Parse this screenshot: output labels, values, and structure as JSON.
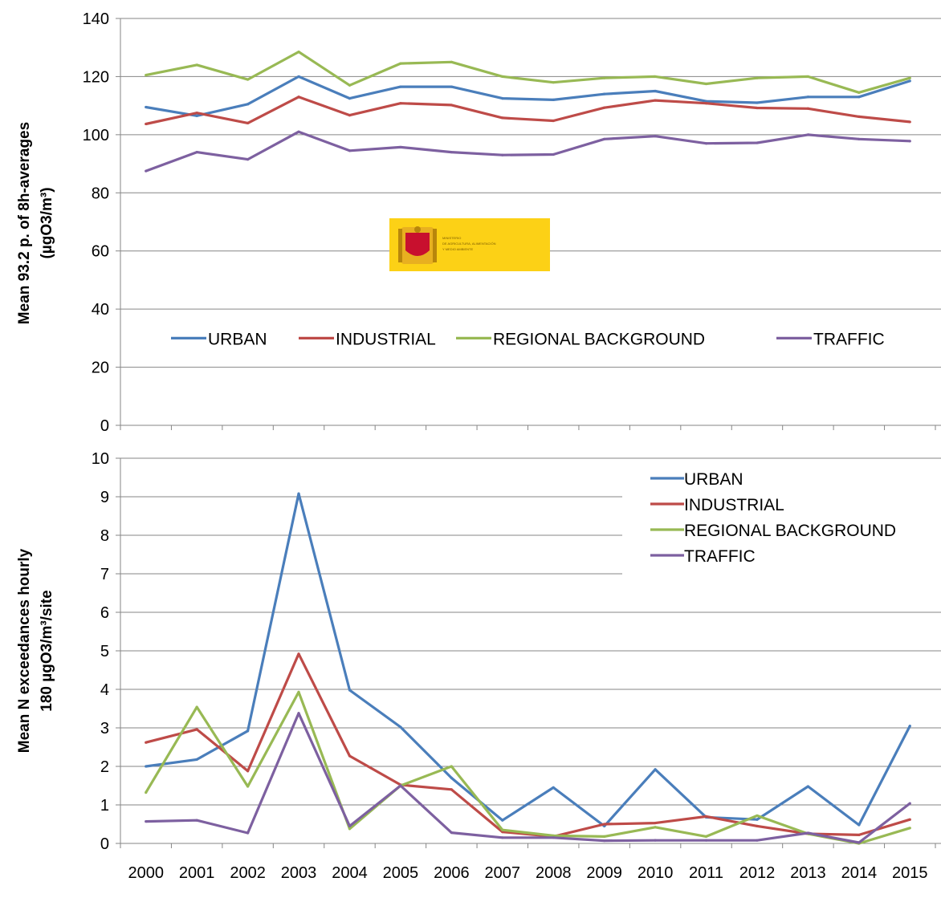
{
  "colors": {
    "URBAN": "#4a7ebb",
    "INDUSTRIAL": "#be4b48",
    "REGIONAL BACKGROUND": "#98b954",
    "TRAFFIC": "#7d60a0",
    "axis": "#868686",
    "grid": "#868686",
    "logo_bg": "#fcd116",
    "logo_crest": "#c8102e"
  },
  "logo": {
    "icon": "spanish-government-crest-icon",
    "lines": [
      "MINISTERIO",
      "DE AGRICULTURA, ALIMENTACIÓN",
      "Y MEDIO AMBIENTE"
    ]
  },
  "chart_data": [
    {
      "type": "line",
      "title": "",
      "ylabel_line1": "Mean  93.2 p.  of  8h-averages",
      "ylabel_line2": "(µgO3/m³)",
      "ylim": [
        0,
        140
      ],
      "ytick_step": 20,
      "grid": true,
      "legend_position": "bottom-center",
      "categories": [
        "2000",
        "2001",
        "2002",
        "2003",
        "2004",
        "2005",
        "2006",
        "2007",
        "2008",
        "2009",
        "2010",
        "2011",
        "2012",
        "2013",
        "2014",
        "2015"
      ],
      "series": [
        {
          "name": "URBAN",
          "values": [
            109.5,
            106.5,
            110.5,
            120,
            112.5,
            116.5,
            116.5,
            112.5,
            112,
            114,
            115,
            111.5,
            111,
            113,
            113,
            118.5
          ]
        },
        {
          "name": "INDUSTRIAL",
          "values": [
            103.7,
            107.5,
            104,
            113,
            106.7,
            110.8,
            110.2,
            105.8,
            104.8,
            109.3,
            111.8,
            110.8,
            109.2,
            109,
            106.2,
            104.4
          ]
        },
        {
          "name": "REGIONAL BACKGROUND",
          "values": [
            120.5,
            124,
            119,
            128.5,
            117,
            124.5,
            125,
            120,
            118,
            119.5,
            120,
            117.5,
            119.5,
            120,
            114.5,
            119.5
          ]
        },
        {
          "name": "TRAFFIC",
          "values": [
            87.5,
            94,
            91.5,
            101,
            94.5,
            95.7,
            94,
            93,
            93.2,
            98.5,
            99.5,
            97,
            97.2,
            100,
            98.5,
            97.8
          ]
        }
      ]
    },
    {
      "type": "line",
      "title": "",
      "ylabel_line1": "Mean N exceedances hourly",
      "ylabel_line2": "180 µgO3/m³/site",
      "ylim": [
        0,
        10
      ],
      "ytick_step": 1,
      "grid": true,
      "legend_position": "top-right",
      "categories": [
        "2000",
        "2001",
        "2002",
        "2003",
        "2004",
        "2005",
        "2006",
        "2007",
        "2008",
        "2009",
        "2010",
        "2011",
        "2012",
        "2013",
        "2014",
        "2015"
      ],
      "series": [
        {
          "name": "URBAN",
          "values": [
            2.0,
            2.18,
            2.92,
            9.08,
            3.98,
            3.02,
            1.7,
            0.6,
            1.45,
            0.45,
            1.92,
            0.68,
            0.62,
            1.48,
            0.48,
            3.05
          ]
        },
        {
          "name": "INDUSTRIAL",
          "values": [
            2.62,
            2.96,
            1.88,
            4.92,
            2.27,
            1.52,
            1.4,
            0.3,
            0.18,
            0.5,
            0.53,
            0.7,
            0.45,
            0.25,
            0.22,
            0.62
          ]
        },
        {
          "name": "REGIONAL BACKGROUND",
          "values": [
            1.32,
            3.54,
            1.48,
            3.93,
            0.38,
            1.5,
            2.0,
            0.35,
            0.2,
            0.18,
            0.42,
            0.18,
            0.72,
            0.25,
            0.0,
            0.4
          ]
        },
        {
          "name": "TRAFFIC",
          "values": [
            0.57,
            0.6,
            0.27,
            3.38,
            0.45,
            1.5,
            0.28,
            0.15,
            0.15,
            0.07,
            0.08,
            0.08,
            0.08,
            0.27,
            0.02,
            1.04
          ]
        }
      ]
    }
  ]
}
